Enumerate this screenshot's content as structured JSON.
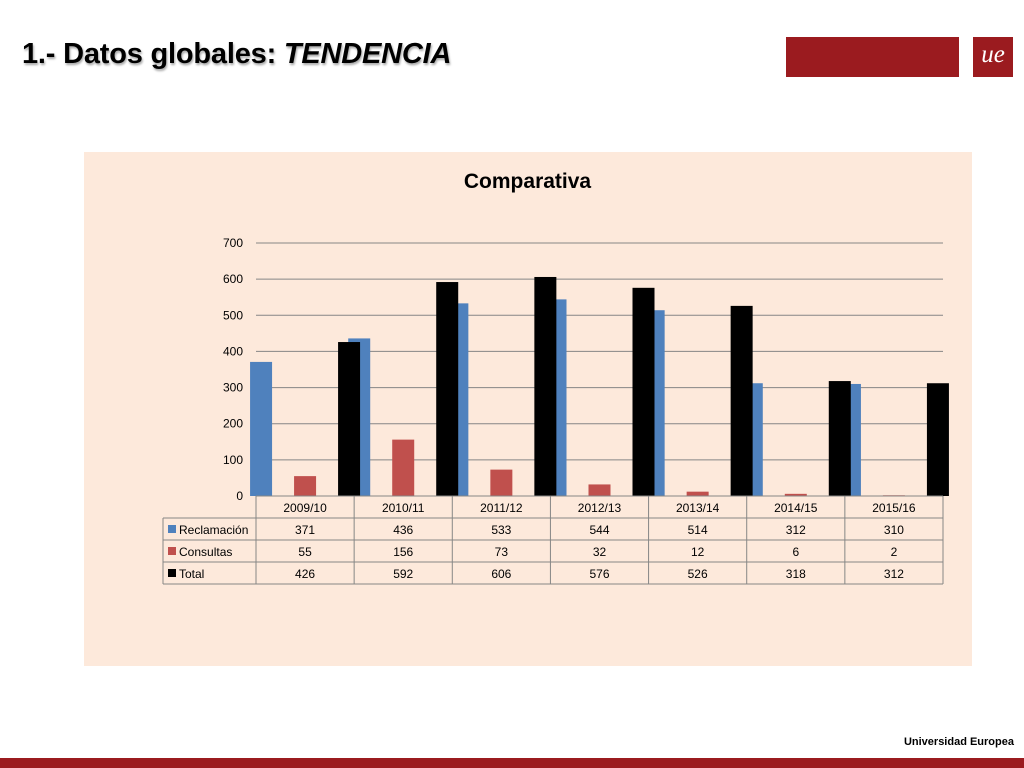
{
  "slide": {
    "title_main": "1.- Datos globales: ",
    "title_emph": "TENDENCIA",
    "logo_text": "ue",
    "footer": "Universidad Europea"
  },
  "colors": {
    "brand_red": "#9b1b1f",
    "panel_bg": "#fde9db",
    "grid": "#868686",
    "series": [
      "#4f81bd",
      "#c0504d",
      "#000000"
    ]
  },
  "chart_data": {
    "type": "bar",
    "title": "Comparativa",
    "categories": [
      "2009/10",
      "2010/11",
      "2011/12",
      "2012/13",
      "2013/14",
      "2014/15",
      "2015/16"
    ],
    "series": [
      {
        "name": "Reclamación",
        "values": [
          371,
          436,
          533,
          544,
          514,
          312,
          310
        ]
      },
      {
        "name": "Consultas",
        "values": [
          55,
          156,
          73,
          32,
          12,
          6,
          2
        ]
      },
      {
        "name": "Total",
        "values": [
          426,
          592,
          606,
          576,
          526,
          318,
          312
        ]
      }
    ],
    "ylim": [
      0,
      700
    ],
    "yticks": [
      0,
      100,
      200,
      300,
      400,
      500,
      600,
      700
    ],
    "grid": true,
    "legend": "data table below chart"
  }
}
